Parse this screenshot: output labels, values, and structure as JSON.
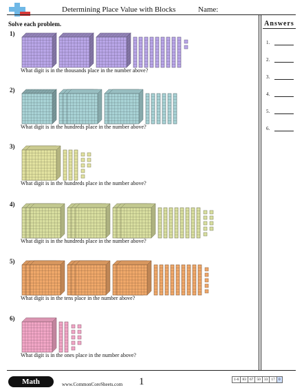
{
  "header": {
    "title": "Determining Place Value with Blocks",
    "name_label": "Name:"
  },
  "instructions": "Solve each problem.",
  "answers": {
    "heading": "Answers",
    "numbers": [
      "1.",
      "2.",
      "3.",
      "4.",
      "5.",
      "6."
    ]
  },
  "problems": [
    {
      "number": "1)",
      "question": "What digit is in the thousands place in the number above?",
      "color": "#b9a6e8",
      "thousands": 3,
      "hundreds": 0,
      "tens": 9,
      "ones": 2
    },
    {
      "number": "2)",
      "question": "What digit is in the hundreds place in the number above?",
      "color": "#a9d3d6",
      "thousands": 1,
      "hundreds": 5,
      "tens": 6,
      "ones": 0
    },
    {
      "number": "3)",
      "question": "What digit is in the hundreds place in the number above?",
      "color": "#e2e2a0",
      "thousands": 0,
      "hundreds": 2,
      "tens": 3,
      "ones": 8
    },
    {
      "number": "4)",
      "question": "What digit is in the hundreds place in the number above?",
      "color": "#d9dfa0",
      "thousands": 0,
      "hundreds": 9,
      "tens": 8,
      "ones": 9
    },
    {
      "number": "5)",
      "question": "What digit is in the tens place in the number above?",
      "color": "#f0a86a",
      "thousands": 0,
      "hundreds": 8,
      "tens": 9,
      "ones": 5
    },
    {
      "number": "6)",
      "question": "What digit is in the ones place in the number above?",
      "color": "#f2a6c6",
      "thousands": 0,
      "hundreds": 1,
      "tens": 2,
      "ones": 9
    }
  ],
  "footer": {
    "brand": "Math",
    "site": "www.CommonCoreSheets.com",
    "page": "1",
    "scores": [
      "1-6",
      "83",
      "67",
      "50",
      "33",
      "17",
      "0"
    ]
  }
}
